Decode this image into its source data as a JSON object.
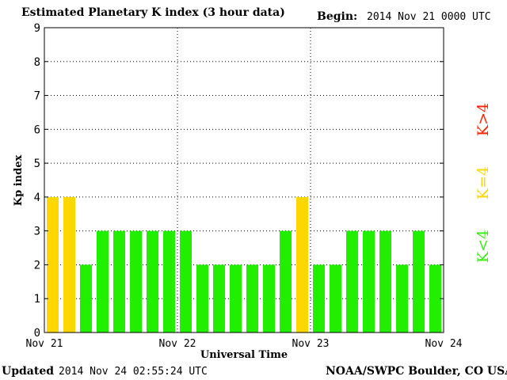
{
  "header": {
    "title": "Estimated Planetary K index (3 hour data)",
    "begin_label": "Begin:",
    "begin_value": "2014 Nov 21 0000 UTC"
  },
  "footer": {
    "updated_label": "Updated",
    "updated_value": "2014 Nov 24 02:55:24 UTC",
    "source": "NOAA/SWPC Boulder, CO USA"
  },
  "legend": [
    {
      "label": "K>4",
      "color": "#ff2200"
    },
    {
      "label": "K=4",
      "color": "#ffd700"
    },
    {
      "label": "K<4",
      "color": "#33ee11"
    }
  ],
  "colors": {
    "low": "#22ee00",
    "equal": "#ffd700",
    "high": "#ff2200"
  },
  "chart_data": {
    "type": "bar",
    "title": "Estimated Planetary K index (3 hour data)",
    "xlabel": "Universal Time",
    "ylabel": "Kp index",
    "ylim": [
      0,
      9
    ],
    "yticks": [
      "0",
      "1",
      "2",
      "3",
      "4",
      "5",
      "6",
      "7",
      "8",
      "9"
    ],
    "xticks": [
      "Nov 21",
      "Nov 22",
      "Nov 23",
      "Nov 24"
    ],
    "grid": true,
    "values": [
      4,
      4,
      2,
      3,
      3,
      3,
      3,
      3,
      3,
      2,
      2,
      2,
      2,
      2,
      3,
      4,
      2,
      2,
      3,
      3,
      3,
      2,
      3,
      2
    ]
  }
}
